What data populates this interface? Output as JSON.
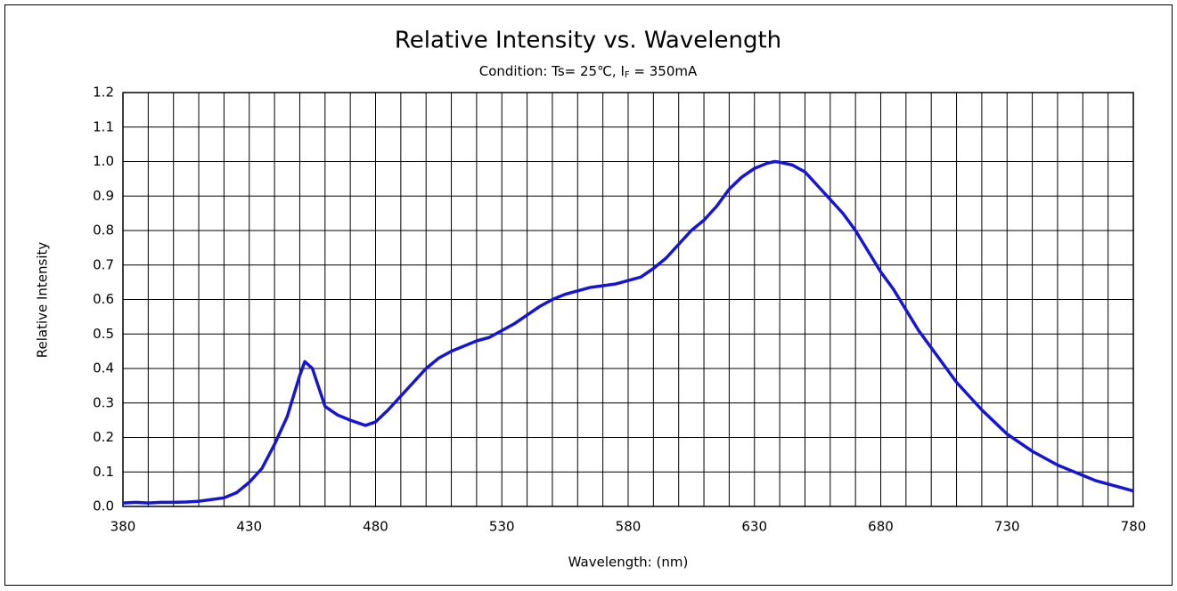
{
  "chart_data": {
    "type": "line",
    "title": "Relative Intensity vs. Wavelength",
    "subtitle": [
      "Condition: Ts= 25℃, I",
      "F",
      " = 350mA"
    ],
    "x_label": "Wavelength: (nm)",
    "y_label": "Relative Intensity",
    "x": [
      380,
      385,
      390,
      395,
      400,
      405,
      410,
      415,
      420,
      425,
      430,
      435,
      440,
      445,
      450,
      452,
      455,
      460,
      465,
      470,
      476,
      480,
      485,
      490,
      495,
      500,
      505,
      510,
      515,
      520,
      525,
      530,
      535,
      540,
      545,
      550,
      555,
      560,
      565,
      570,
      575,
      580,
      585,
      590,
      595,
      600,
      605,
      610,
      615,
      620,
      625,
      630,
      635,
      638,
      640,
      645,
      650,
      655,
      660,
      665,
      670,
      675,
      680,
      685,
      690,
      695,
      700,
      705,
      710,
      715,
      720,
      725,
      730,
      735,
      740,
      745,
      750,
      755,
      760,
      765,
      770,
      775,
      780
    ],
    "series": [
      {
        "color": "#1515d8",
        "values": [
          0.01,
          0.012,
          0.01,
          0.012,
          0.012,
          0.013,
          0.015,
          0.02,
          0.025,
          0.04,
          0.07,
          0.11,
          0.18,
          0.26,
          0.38,
          0.42,
          0.4,
          0.29,
          0.265,
          0.25,
          0.235,
          0.245,
          0.28,
          0.32,
          0.36,
          0.4,
          0.43,
          0.45,
          0.465,
          0.48,
          0.49,
          0.51,
          0.53,
          0.555,
          0.58,
          0.6,
          0.615,
          0.625,
          0.635,
          0.64,
          0.645,
          0.655,
          0.665,
          0.69,
          0.72,
          0.76,
          0.8,
          0.83,
          0.87,
          0.92,
          0.955,
          0.98,
          0.995,
          1.0,
          0.998,
          0.99,
          0.97,
          0.93,
          0.89,
          0.85,
          0.8,
          0.74,
          0.68,
          0.63,
          0.57,
          0.51,
          0.46,
          0.41,
          0.36,
          0.32,
          0.28,
          0.245,
          0.21,
          0.185,
          0.16,
          0.14,
          0.12,
          0.105,
          0.09,
          0.075,
          0.065,
          0.055,
          0.045
        ]
      }
    ],
    "xlim": [
      380,
      780
    ],
    "xticks": [
      380,
      430,
      480,
      530,
      580,
      630,
      680,
      730,
      780
    ],
    "xgrid": [
      380,
      390,
      400,
      410,
      420,
      430,
      440,
      450,
      460,
      470,
      480,
      490,
      500,
      510,
      520,
      530,
      540,
      550,
      560,
      570,
      580,
      590,
      600,
      610,
      620,
      630,
      640,
      650,
      660,
      670,
      680,
      690,
      700,
      710,
      720,
      730,
      740,
      750,
      760,
      770,
      780
    ],
    "ylim": [
      0,
      1.2
    ],
    "yticks": [
      {
        "value": 0,
        "label": "0.0"
      },
      0.1,
      0.2,
      0.3,
      0.4,
      0.5,
      0.6,
      0.7,
      0.8,
      0.9,
      {
        "value": 1,
        "label": "1.0"
      },
      1.1,
      1.2
    ],
    "grid": true
  }
}
